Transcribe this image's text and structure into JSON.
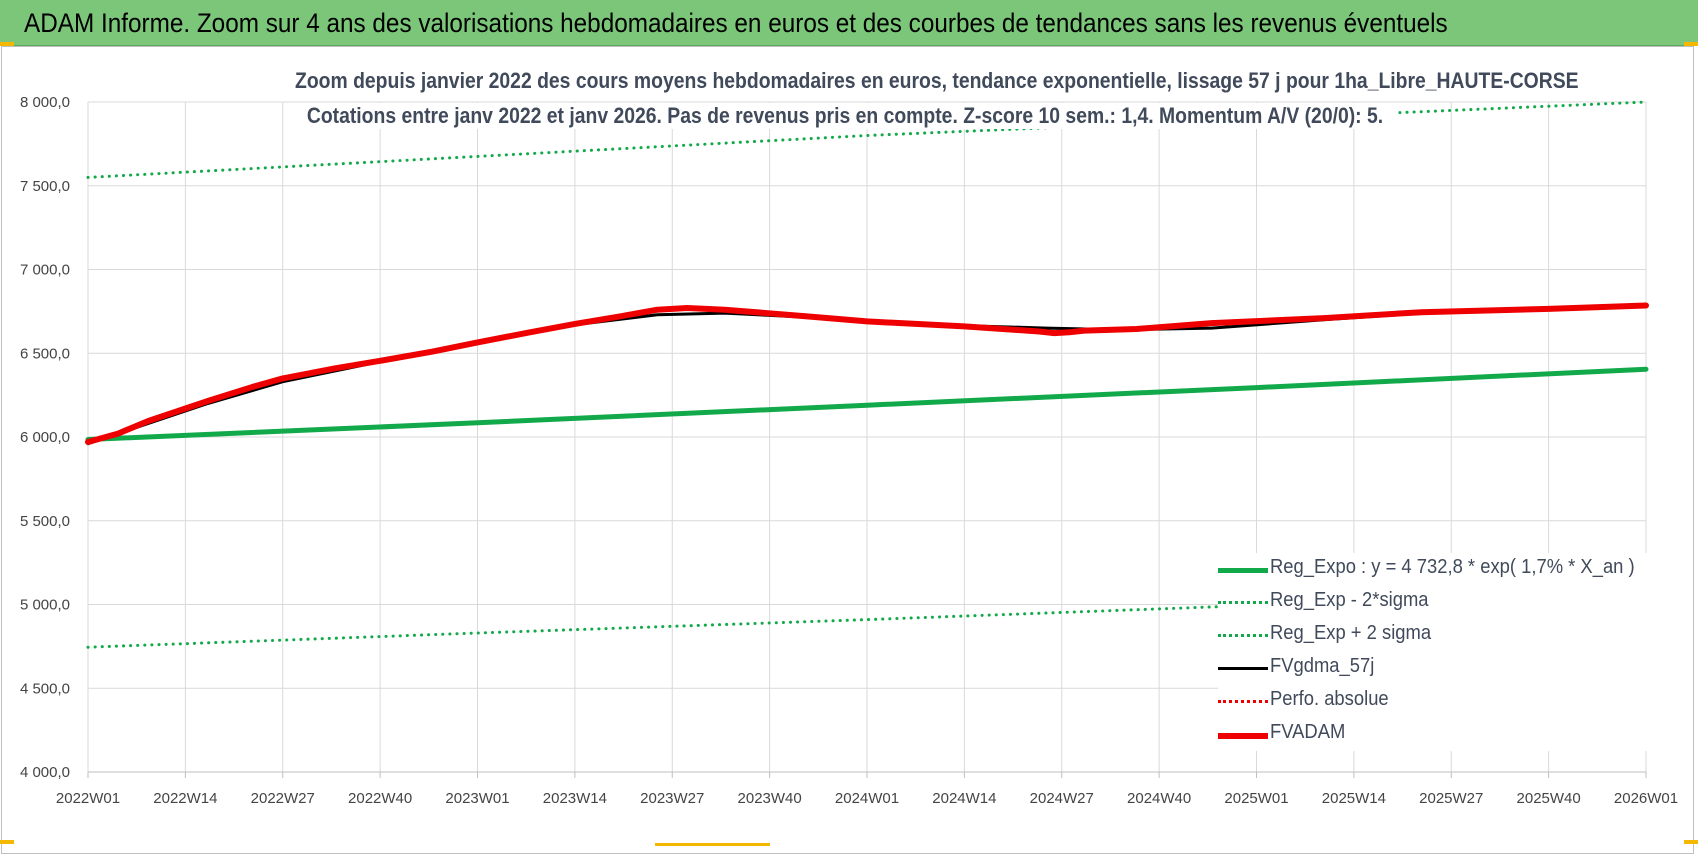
{
  "banner": {
    "title": "ADAM Informe. Zoom sur 4 ans des valorisations hebdomadaires en euros et des courbes de tendances sans les revenus éventuels"
  },
  "colors": {
    "banner_bg": "#7cc67a",
    "green": "#12a94a",
    "black": "#000000",
    "red": "#ee0000",
    "grid": "#d9d9d9"
  },
  "chart_data": {
    "type": "line",
    "title_line1": "Zoom depuis janvier 2022 des cours moyens hebdomadaires en euros, tendance exponentielle, lissage 57 j pour 1ha_Libre_HAUTE-CORSE",
    "title_line2": "Cotations entre janv 2022 et janv 2026. Pas de revenus pris en compte. Z-score 10 sem.: 1,4. Momentum A/V (20/0): 5.",
    "x_categories": [
      "2022W01",
      "2022W14",
      "2022W27",
      "2022W40",
      "2023W01",
      "2023W14",
      "2023W27",
      "2023W40",
      "2024W01",
      "2024W14",
      "2024W27",
      "2024W40",
      "2025W01",
      "2025W14",
      "2025W27",
      "2025W40",
      "2026W01"
    ],
    "y_ticks": [
      "8 000,0",
      "7 500,0",
      "7 000,0",
      "6 500,0",
      "6 000,0",
      "5 500,0",
      "5 000,0",
      "4 500,0",
      "4 000,0"
    ],
    "ylim": [
      4000,
      8000
    ],
    "grid": true,
    "legend_position": "bottom-right",
    "series": [
      {
        "name": "Reg_Expo : y = 4 732,8 * exp( 1,7% *  X_an )",
        "color": "#12a94a",
        "style": "solid",
        "width": 5,
        "x": [
          0,
          52,
          104,
          156,
          208
        ],
        "y": [
          5985,
          6085,
          6190,
          6295,
          6405
        ]
      },
      {
        "name": "Reg_Exp - 2*sigma",
        "color": "#12a94a",
        "style": "dotted",
        "width": 3,
        "x": [
          0,
          52,
          104,
          156,
          208
        ],
        "y": [
          4745,
          4830,
          4910,
          4995,
          5080
        ]
      },
      {
        "name": "Reg_Exp + 2 sigma",
        "color": "#12a94a",
        "style": "dotted",
        "width": 3,
        "x": [
          0,
          52,
          104,
          156,
          208
        ],
        "y": [
          7550,
          7675,
          7800,
          7900,
          8000
        ]
      },
      {
        "name": "FVgdma_57j",
        "color": "#000000",
        "style": "solid",
        "width": 3,
        "x": [
          0,
          8,
          16,
          26,
          39,
          52,
          65,
          76,
          85,
          96,
          104,
          117,
          128,
          138,
          150,
          165,
          178,
          195,
          208
        ],
        "y": [
          5960,
          6080,
          6200,
          6330,
          6450,
          6565,
          6670,
          6730,
          6740,
          6715,
          6690,
          6665,
          6650,
          6640,
          6650,
          6700,
          6740,
          6760,
          6785
        ]
      },
      {
        "name": "Perfo. absolue",
        "color": "#ee0000",
        "style": "dotted",
        "width": 3,
        "x": [],
        "y": []
      },
      {
        "name": "FVADAM",
        "color": "#ee0000",
        "style": "solid",
        "width": 6,
        "x": [
          0,
          4,
          8,
          16,
          22,
          26,
          33,
          39,
          46,
          52,
          59,
          65,
          71,
          76,
          80,
          85,
          96,
          104,
          117,
          127,
          129,
          131,
          133,
          140,
          150,
          165,
          178,
          195,
          208
        ],
        "y": [
          5970,
          6020,
          6095,
          6215,
          6300,
          6350,
          6410,
          6455,
          6510,
          6565,
          6625,
          6675,
          6720,
          6760,
          6770,
          6760,
          6720,
          6690,
          6660,
          6630,
          6620,
          6625,
          6635,
          6645,
          6680,
          6710,
          6745,
          6765,
          6785
        ]
      }
    ]
  }
}
